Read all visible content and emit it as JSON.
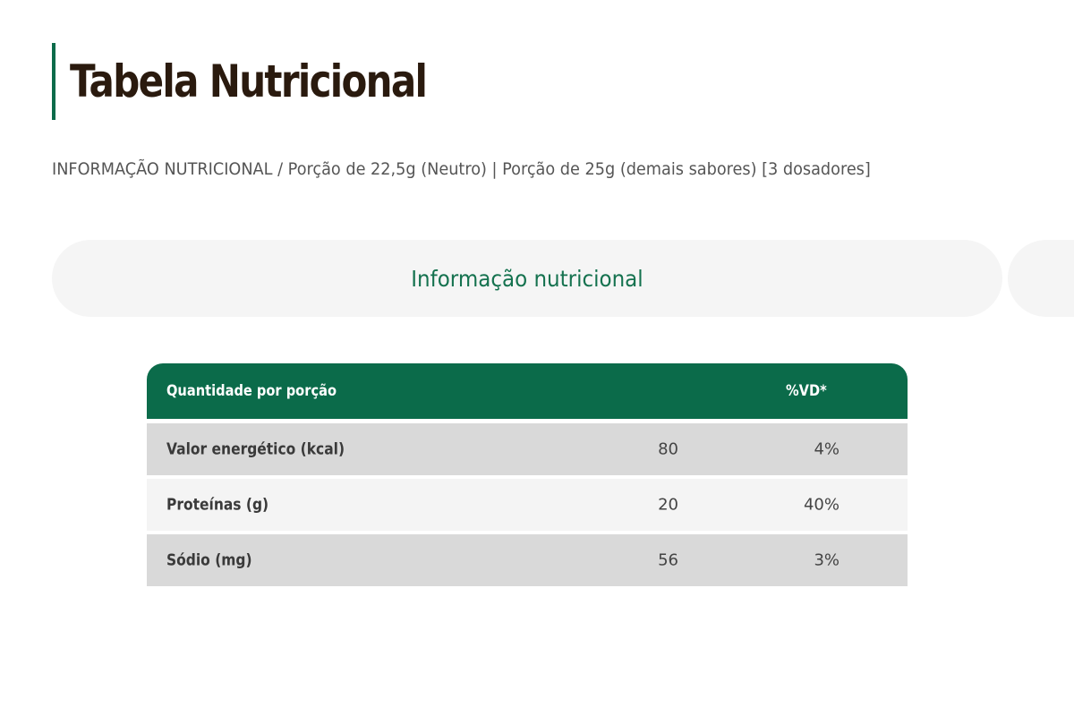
{
  "header": {
    "title": "Tabela Nutricional",
    "subtitle": "INFORMAÇÃO NUTRICIONAL / Porção de 22,5g (Neutro) | Porção de 25g (demais sabores) [3 dosadores]"
  },
  "tabs": [
    {
      "label": "Informação nutricional"
    }
  ],
  "table": {
    "columns": {
      "label": "Quantidade por porção",
      "vd": "%VD*"
    },
    "rows": [
      {
        "label": "Valor energético (kcal)",
        "qty": "80",
        "vd": "4%"
      },
      {
        "label": "Proteínas (g)",
        "qty": "20",
        "vd": "40%"
      },
      {
        "label": "Sódio (mg)",
        "qty": "56",
        "vd": "3%"
      }
    ]
  },
  "colors": {
    "accent": "#0b6b4a",
    "title": "#2a1a0e",
    "tab_text": "#15724f",
    "row_dark": "#d9d9d9",
    "row_light": "#f4f4f4"
  }
}
